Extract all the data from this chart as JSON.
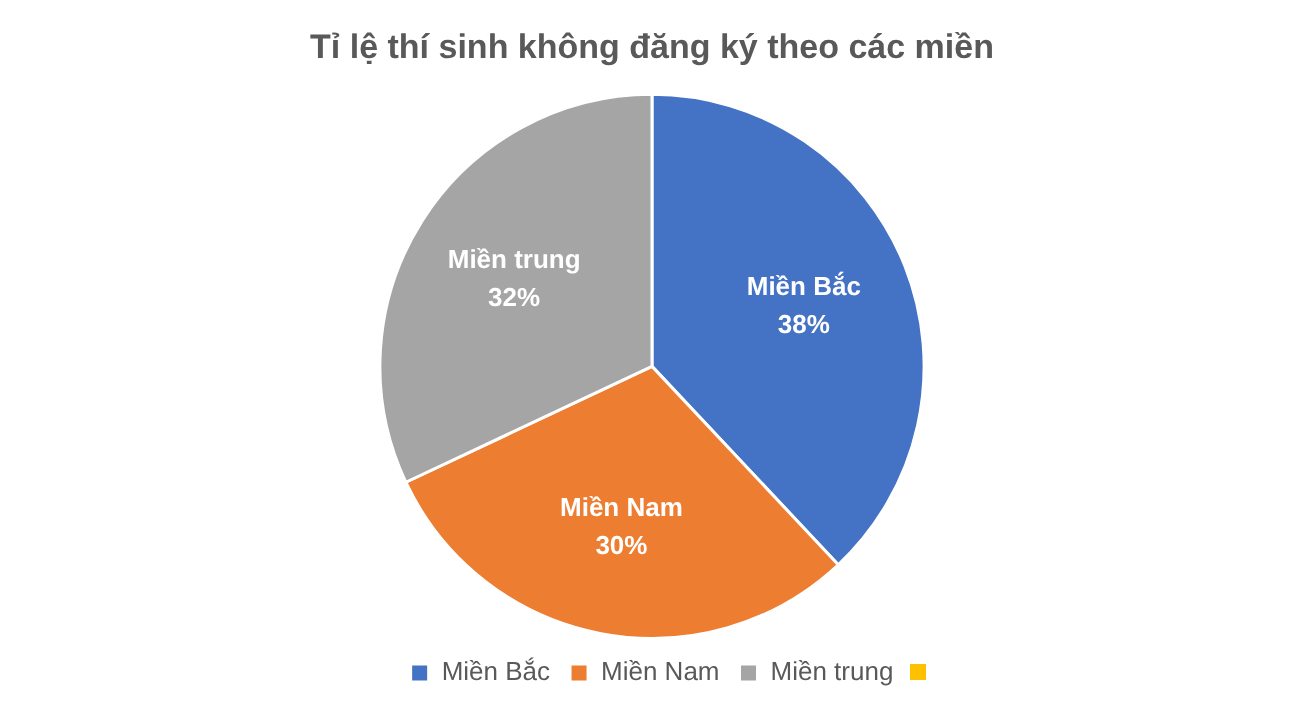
{
  "chart_data": {
    "type": "pie",
    "title": "Tỉ lệ thí sinh không đăng ký theo các miền",
    "categories": [
      "Miền Bắc",
      "Miền Nam",
      "Miền trung"
    ],
    "values": [
      38,
      30,
      32
    ],
    "colors": [
      "#4472c4",
      "#ed7d31",
      "#a5a5a5"
    ],
    "value_labels": [
      "38%",
      "30%",
      "32%"
    ],
    "legend": "bottom"
  }
}
